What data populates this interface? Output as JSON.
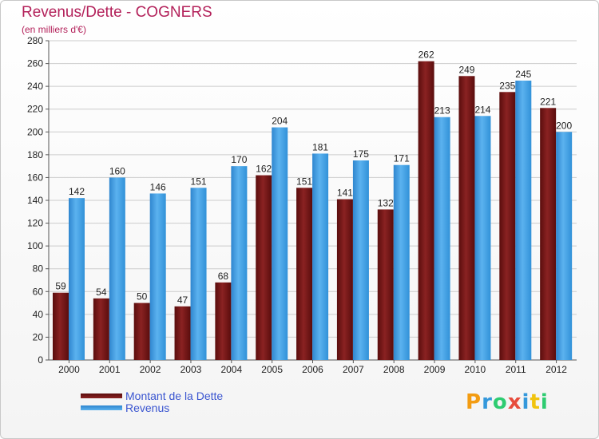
{
  "title": "Revenus/Dette - COGNERS",
  "subtitle": "(en milliers d'€)",
  "legend": {
    "debt_label": "Montant de la Dette",
    "revenue_label": "Revenus"
  },
  "logo": {
    "letters": [
      "P",
      "r",
      "o",
      "x",
      "i",
      "t",
      "i"
    ],
    "colors": [
      "#f39c12",
      "#3498db",
      "#2ecc71",
      "#e74c3c",
      "#3498db",
      "#f1c40f",
      "#2ecc71"
    ]
  },
  "colors": {
    "debt": "#7a1717",
    "revenue": "#3d9ee5",
    "grid": "#cccccc",
    "axis_text": "#222222"
  },
  "chart_data": {
    "type": "bar",
    "title": "Revenus/Dette - COGNERS",
    "subtitle": "(en milliers d'€)",
    "categories": [
      "2000",
      "2001",
      "2002",
      "2003",
      "2004",
      "2005",
      "2006",
      "2007",
      "2008",
      "2009",
      "2010",
      "2011",
      "2012"
    ],
    "series": [
      {
        "name": "Montant de la Dette",
        "values": [
          59,
          54,
          50,
          47,
          68,
          162,
          151,
          141,
          132,
          262,
          249,
          235,
          221
        ]
      },
      {
        "name": "Revenus",
        "values": [
          142,
          160,
          146,
          151,
          170,
          204,
          181,
          175,
          171,
          213,
          214,
          245,
          200
        ]
      }
    ],
    "ylim": [
      0,
      280
    ],
    "yticks": [
      0,
      20,
      40,
      60,
      80,
      100,
      120,
      140,
      160,
      180,
      200,
      220,
      240,
      260,
      280
    ],
    "grid": true,
    "legend_position": "bottom-left"
  }
}
